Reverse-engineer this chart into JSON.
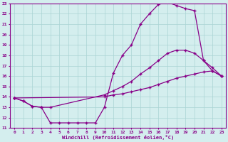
{
  "xlabel": "Windchill (Refroidissement éolien,°C)",
  "bg_color": "#d4eeee",
  "line_color": "#880088",
  "xlim": [
    -0.5,
    23.5
  ],
  "ylim": [
    11,
    23
  ],
  "xticks": [
    0,
    1,
    2,
    3,
    4,
    5,
    6,
    7,
    8,
    9,
    10,
    11,
    12,
    13,
    14,
    15,
    16,
    17,
    18,
    19,
    20,
    21,
    22,
    23
  ],
  "yticks": [
    11,
    12,
    13,
    14,
    15,
    16,
    17,
    18,
    19,
    20,
    21,
    22,
    23
  ],
  "curve1_x": [
    0,
    1,
    2,
    3,
    4,
    5,
    6,
    7,
    8,
    9,
    10,
    11,
    12,
    13,
    14,
    15,
    16,
    17,
    18,
    19,
    20,
    21,
    22,
    23
  ],
  "curve1_y": [
    13.9,
    13.6,
    13.1,
    13.0,
    11.5,
    11.5,
    11.5,
    11.5,
    11.5,
    11.5,
    13.0,
    16.3,
    18.0,
    19.0,
    21.0,
    22.0,
    22.9,
    23.1,
    22.8,
    22.5,
    22.3,
    17.5,
    16.5,
    16.0
  ],
  "curve2_x": [
    0,
    1,
    2,
    3,
    4,
    10,
    11,
    12,
    13,
    14,
    15,
    16,
    17,
    18,
    19,
    20,
    21,
    22,
    23
  ],
  "curve2_y": [
    13.9,
    13.6,
    13.1,
    13.0,
    13.0,
    14.2,
    14.6,
    15.0,
    15.5,
    16.2,
    16.8,
    17.5,
    18.2,
    18.5,
    18.5,
    18.2,
    17.5,
    16.8,
    16.0
  ],
  "curve3_x": [
    0,
    10,
    11,
    12,
    13,
    14,
    15,
    16,
    17,
    18,
    19,
    20,
    21,
    22,
    23
  ],
  "curve3_y": [
    13.9,
    14.0,
    14.2,
    14.3,
    14.5,
    14.7,
    14.9,
    15.2,
    15.5,
    15.8,
    16.0,
    16.2,
    16.4,
    16.5,
    16.0
  ],
  "grid_color": "#aad4d4",
  "marker": "+"
}
